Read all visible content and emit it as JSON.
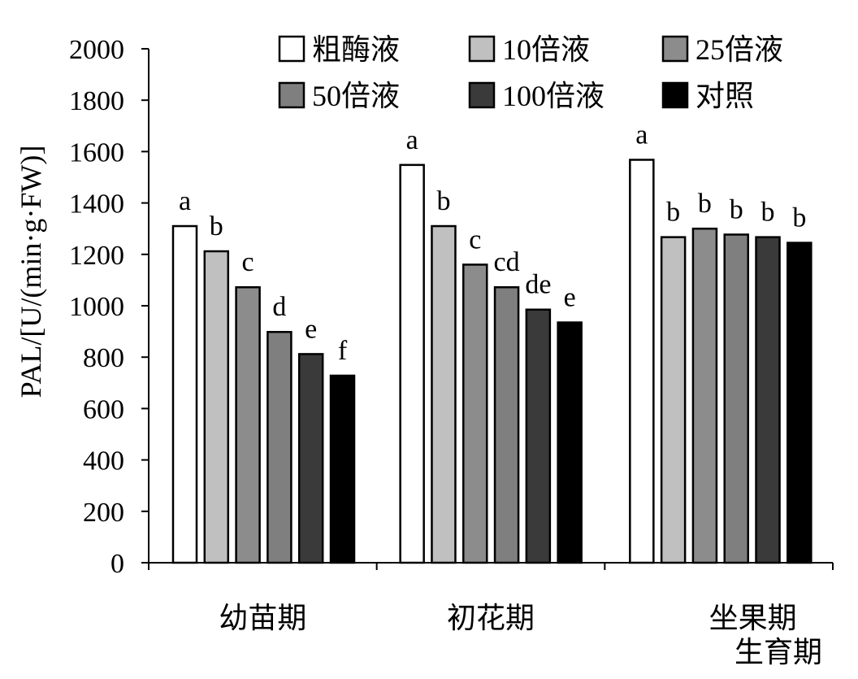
{
  "chart_data": {
    "type": "bar",
    "title": "",
    "ylabel": "PAL/[U/(min·g·FW)]",
    "xlabel": "生育期",
    "ylim": [
      0,
      2000
    ],
    "yticks": [
      0,
      200,
      400,
      600,
      800,
      1000,
      1200,
      1400,
      1600,
      1800,
      2000
    ],
    "grid": false,
    "legend_position": "top",
    "categories": [
      "幼苗期",
      "初花期",
      "坐果期"
    ],
    "series": [
      {
        "name": "粗酶液",
        "color": "#ffffff",
        "values": [
          1310,
          1548,
          1568
        ],
        "letters": [
          "a",
          "a",
          "a"
        ]
      },
      {
        "name": "10倍液",
        "color": "#c0c0c0",
        "values": [
          1212,
          1310,
          1267
        ],
        "letters": [
          "b",
          "b",
          "b"
        ]
      },
      {
        "name": "25倍液",
        "color": "#8c8c8c",
        "values": [
          1072,
          1160,
          1300
        ],
        "letters": [
          "c",
          "c",
          "b"
        ]
      },
      {
        "name": "50倍液",
        "color": "#7f7f7f",
        "values": [
          898,
          1072,
          1277
        ],
        "letters": [
          "d",
          "cd",
          "b"
        ]
      },
      {
        "name": "100倍液",
        "color": "#3a3a3a",
        "values": [
          812,
          985,
          1267
        ],
        "letters": [
          "e",
          "de",
          "b"
        ]
      },
      {
        "name": "对照",
        "color": "#000000",
        "values": [
          728,
          935,
          1245
        ],
        "letters": [
          "f",
          "e",
          "b"
        ]
      }
    ]
  }
}
